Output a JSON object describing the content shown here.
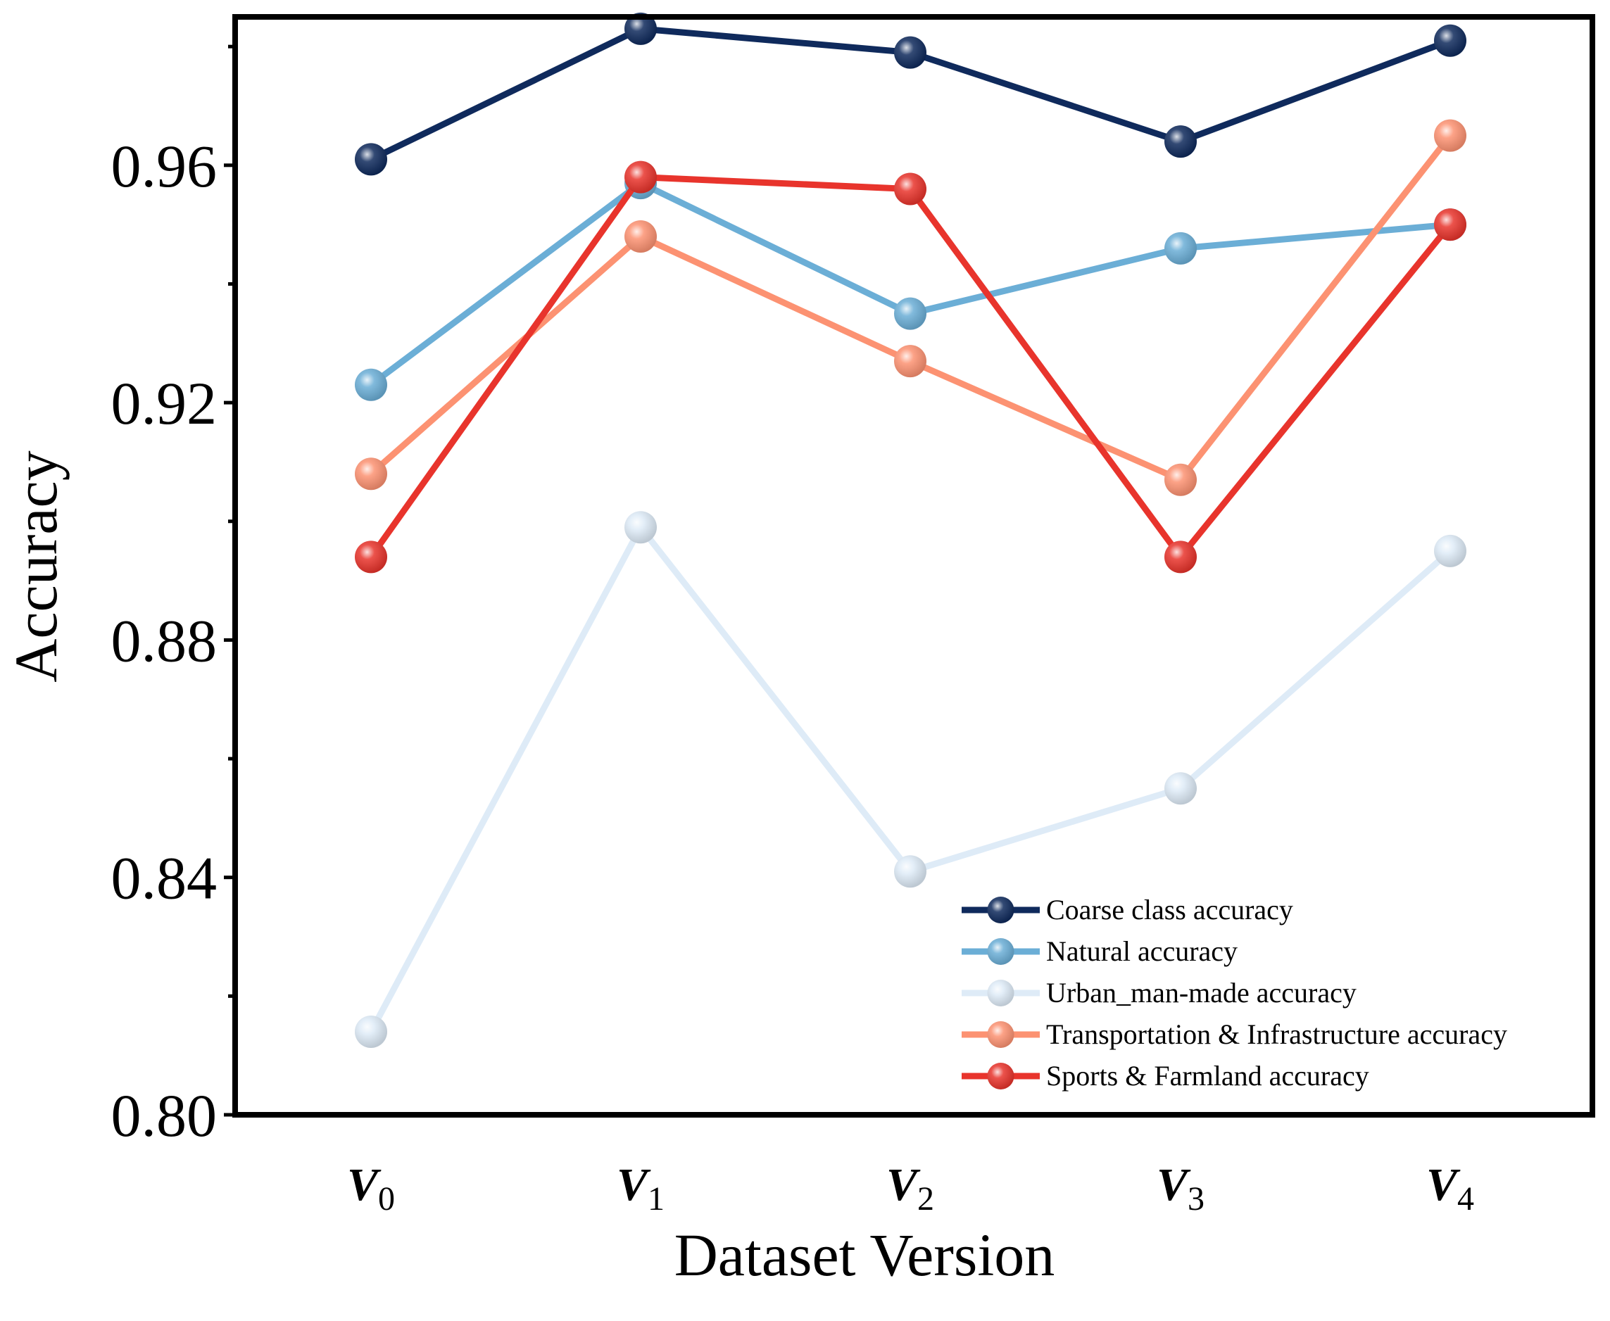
{
  "chart_data": {
    "type": "line",
    "xlabel": "Dataset Version",
    "ylabel": "Accuracy",
    "categories": [
      {
        "main": "V",
        "sub": "0"
      },
      {
        "main": "V",
        "sub": "1"
      },
      {
        "main": "V",
        "sub": "2"
      },
      {
        "main": "V",
        "sub": "3"
      },
      {
        "main": "V",
        "sub": "4"
      }
    ],
    "ylim": [
      0.8,
      0.985
    ],
    "y_ticks": [
      0.8,
      0.84,
      0.88,
      0.92,
      0.96
    ],
    "y_tick_labels": [
      "0.80",
      "0.84",
      "0.88",
      "0.92",
      "0.96"
    ],
    "y_minor_ticks": [
      0.82,
      0.86,
      0.9,
      0.94,
      0.98
    ],
    "grid": false,
    "legend_position": "bottom-right",
    "series": [
      {
        "name": "Coarse class accuracy",
        "color": "#0f2a5c",
        "values": [
          0.961,
          0.983,
          0.979,
          0.964,
          0.981
        ]
      },
      {
        "name": "Natural accuracy",
        "color": "#6baed6",
        "values": [
          0.923,
          0.957,
          0.935,
          0.946,
          0.95
        ]
      },
      {
        "name": "Urban_man-made accuracy",
        "color": "#deebf7",
        "values": [
          0.814,
          0.899,
          0.841,
          0.855,
          0.895
        ]
      },
      {
        "name": "Transportation & Infrastructure accuracy",
        "color": "#fc9272",
        "values": [
          0.908,
          0.948,
          0.927,
          0.907,
          0.965
        ]
      },
      {
        "name": "Sports & Farmland accuracy",
        "color": "#e8342c",
        "values": [
          0.894,
          0.958,
          0.956,
          0.894,
          0.95
        ]
      }
    ]
  }
}
